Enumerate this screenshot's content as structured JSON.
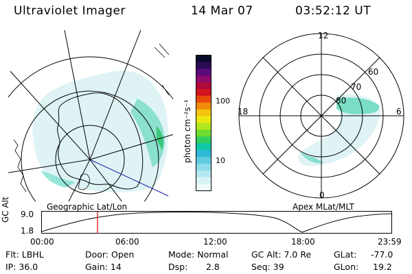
{
  "header": {
    "instrument": "Ultraviolet Imager",
    "date": "14 Mar 07",
    "time": "03:52:12 UT"
  },
  "left_panel": {
    "caption": "Geographic Lat/Lon"
  },
  "right_panel": {
    "caption": "Apex MLat/MLT",
    "mlt_labels": [
      "12",
      "18",
      "6",
      "0"
    ],
    "lat_labels": [
      "60",
      "70",
      "80"
    ]
  },
  "colorbar": {
    "unit": "photon cm⁻²s⁻¹",
    "ticks": [
      "100",
      "10"
    ],
    "colors": [
      "#0a0a2a",
      "#2a0a55",
      "#5a0a7a",
      "#8b0a6a",
      "#b00a3a",
      "#d4141e",
      "#e84a0c",
      "#f08a08",
      "#f4c410",
      "#eaea10",
      "#b4e620",
      "#70dc30",
      "#30d060",
      "#10c8a8",
      "#30b8d8",
      "#60cce0",
      "#8cdcea",
      "#b4e8f0",
      "#d8f2f6",
      "#f0fafc"
    ]
  },
  "altitude_plot": {
    "y_label": "GC Alt",
    "y_ticks": [
      "9.0",
      "1.8"
    ],
    "x_ticks": [
      "00:00",
      "06:00",
      "12:00",
      "18:00",
      "23:59"
    ],
    "marker_time": "03:52"
  },
  "info": {
    "flt": "Flt: LBHL",
    "ip": "IP: 36.0",
    "door": "Door: Open",
    "gain": "Gain: 14",
    "mode": "Mode: Normal",
    "dsp_label": "Dsp:",
    "dsp_value": "2.8",
    "gc_alt": "GC Alt: 7.0 Re",
    "seq": "Seq: 39",
    "glat_label": "GLat:",
    "glat_value": "-77.0",
    "glon_label": "GLon:",
    "glon_value": "19.2"
  }
}
